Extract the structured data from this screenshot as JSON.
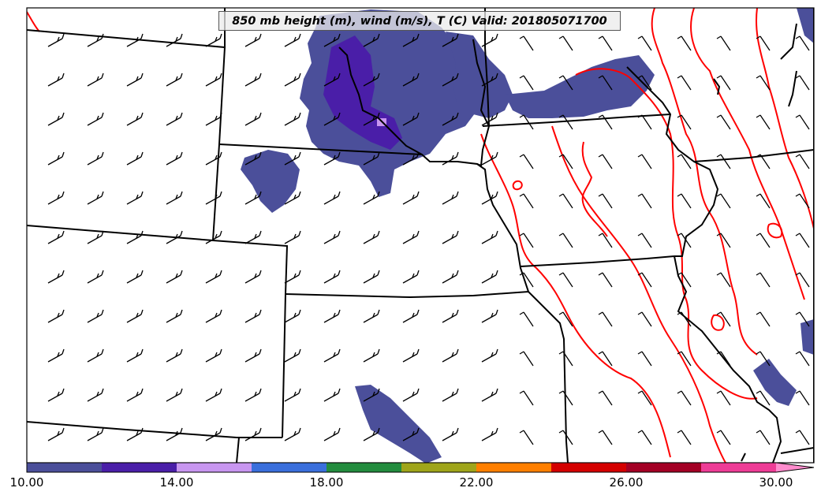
{
  "title": "850 mb height (m), wind (m/s), T (C) Valid: 201805071700",
  "colorbar": {
    "colors": [
      "#4b4f9a",
      "#4a1ea8",
      "#c896f0",
      "#3a6fdc",
      "#238c3e",
      "#9fa51a",
      "#ff7f00",
      "#d40000",
      "#a30024",
      "#ee3c96",
      "#ff8ccd"
    ],
    "tick_labels": [
      "10.00",
      "14.00",
      "18.00",
      "22.00",
      "26.00",
      "30.00"
    ]
  },
  "colors": {
    "isotherm": "#ff0000",
    "boundaries": "#000000",
    "shade_main": "#4b4f9a",
    "shade_deep": "#4a1ea8",
    "shade_light": "#c896f0"
  }
}
